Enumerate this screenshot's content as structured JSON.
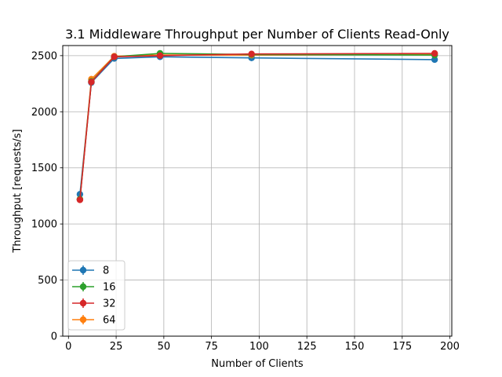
{
  "chart_data": {
    "type": "line",
    "title": "3.1 Middleware Throughput per Number of Clients Read-Only",
    "xlabel": "Number of Clients",
    "ylabel": "Throughput [requests/s]",
    "xlim": [
      -3,
      201
    ],
    "ylim": [
      0,
      2590
    ],
    "xticks": [
      0,
      25,
      50,
      75,
      100,
      125,
      150,
      175,
      200
    ],
    "yticks": [
      0,
      500,
      1000,
      1500,
      2000,
      2500
    ],
    "grid": true,
    "legend_position": "lower-left",
    "x": [
      6,
      12,
      24,
      48,
      96,
      192
    ],
    "series": [
      {
        "name": "8",
        "color": "#1f77b4",
        "values": [
          1265,
          2260,
          2475,
          2490,
          2480,
          2465
        ]
      },
      {
        "name": "16",
        "color": "#2ca02c",
        "values": [
          1220,
          2270,
          2490,
          2520,
          2510,
          2505
        ]
      },
      {
        "name": "32",
        "color": "#d62728",
        "values": [
          1215,
          2265,
          2490,
          2500,
          2515,
          2520
        ]
      },
      {
        "name": "64",
        "color": "#ff7f0e",
        "values": [
          1220,
          2290,
          2495,
          2505,
          2505,
          2510
        ]
      }
    ],
    "draw_order": [
      0,
      3,
      1,
      2
    ]
  }
}
